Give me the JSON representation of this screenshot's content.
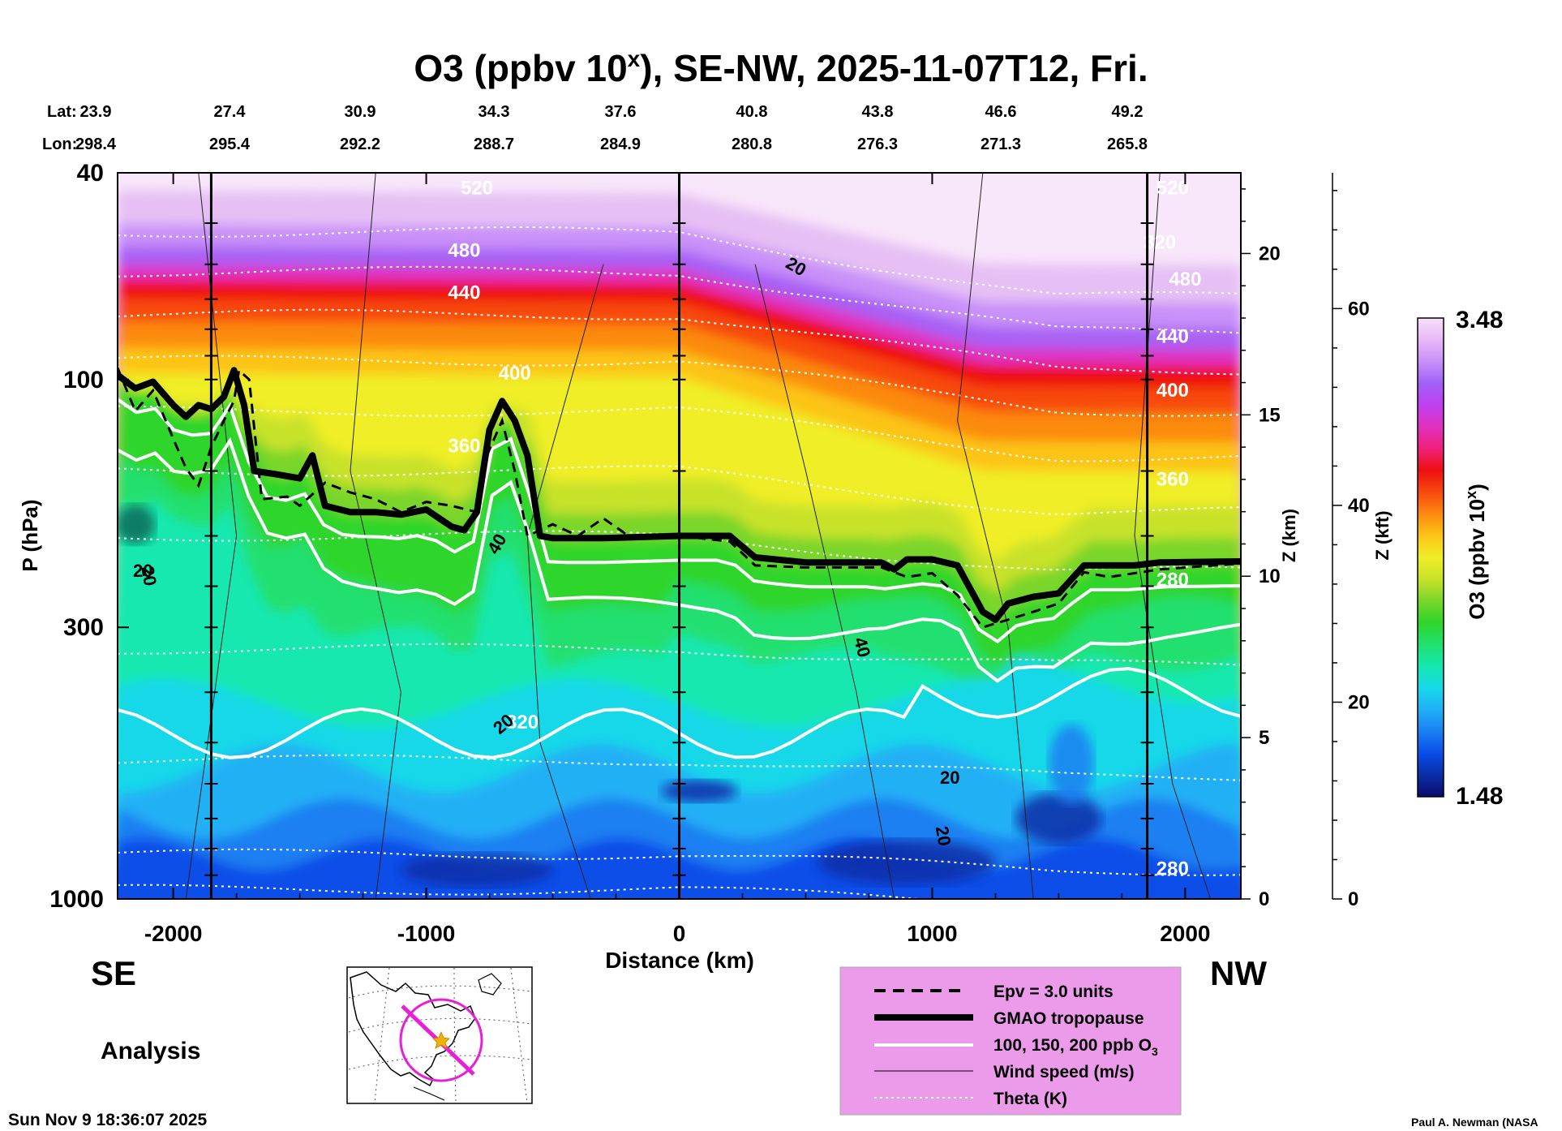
{
  "chart_data": {
    "type": "heatmap",
    "title_main": "O3 (ppbv 10",
    "title_sup": "x",
    "title_rest": "), SE-NW, 2025-11-07T12, Fri.",
    "lat_label": "Lat:",
    "lon_label": "Lon:",
    "lat": [
      "23.9",
      "27.4",
      "30.9",
      "34.3",
      "37.6",
      "40.8",
      "43.8",
      "46.6",
      "49.2"
    ],
    "lon": [
      "298.4",
      "295.4",
      "292.2",
      "288.7",
      "284.9",
      "280.8",
      "276.3",
      "271.3",
      "265.8"
    ],
    "xlabel": "Distance (km)",
    "xlim": [
      -2220,
      2220
    ],
    "x_ticks": [
      -2000,
      -1000,
      0,
      1000,
      2000
    ],
    "x_tick_labels": [
      "-2000",
      "-1000",
      "0",
      "1000",
      "2000"
    ],
    "ylabel": "P (hPa)",
    "y_ticks_hpa": [
      40,
      100,
      300,
      1000
    ],
    "y_tick_labels": [
      "40",
      "100",
      "300",
      "1000"
    ],
    "z_km_label": "Z (km)",
    "z_km_ticks": [
      0,
      5,
      10,
      15,
      20
    ],
    "z_km_tick_labels": [
      "0",
      "5",
      "10",
      "15",
      "20"
    ],
    "z_kft_label": "Z (kft)",
    "z_kft_ticks": [
      0,
      20,
      40,
      60
    ],
    "z_kft_tick_labels": [
      "0",
      "20",
      "40",
      "60"
    ],
    "colorbar": {
      "label_main": "O3 (ppbv 10",
      "label_sup": "x",
      "label_end": ")",
      "min_label": "1.48",
      "max_label": "3.48",
      "min": 1.48,
      "max": 3.48,
      "colors": [
        "#0a0a6a",
        "#0b2ea8",
        "#0a4de8",
        "#1a7ff2",
        "#20b0f5",
        "#16d8e8",
        "#15e8b0",
        "#20e070",
        "#2fd52a",
        "#7ad62a",
        "#c8e22a",
        "#f0ee28",
        "#fcc416",
        "#fc8a10",
        "#f84a10",
        "#ee1010",
        "#f0207a",
        "#e030c0",
        "#c040f0",
        "#a060f8",
        "#c890f8",
        "#e8b8f8",
        "#f8e0fa"
      ]
    },
    "theta_labels": [
      "520",
      "480",
      "440",
      "400",
      "360",
      "320",
      "280",
      "520",
      "480",
      "440",
      "400",
      "360",
      "320",
      "280"
    ],
    "wind_labels": [
      "20",
      "40",
      "20",
      "20",
      "40",
      "20",
      "20",
      "20"
    ],
    "tropopause_hpa": [
      [
        -2220,
        98
      ],
      [
        -2150,
        104
      ],
      [
        -2080,
        101
      ],
      [
        -2000,
        112
      ],
      [
        -1950,
        118
      ],
      [
        -1900,
        112
      ],
      [
        -1850,
        114
      ],
      [
        -1800,
        108
      ],
      [
        -1760,
        96
      ],
      [
        -1720,
        112
      ],
      [
        -1680,
        150
      ],
      [
        -1600,
        152
      ],
      [
        -1500,
        155
      ],
      [
        -1450,
        140
      ],
      [
        -1400,
        175
      ],
      [
        -1300,
        180
      ],
      [
        -1200,
        180
      ],
      [
        -1100,
        182
      ],
      [
        -1000,
        178
      ],
      [
        -900,
        192
      ],
      [
        -850,
        195
      ],
      [
        -800,
        180
      ],
      [
        -750,
        125
      ],
      [
        -700,
        110
      ],
      [
        -650,
        120
      ],
      [
        -600,
        140
      ],
      [
        -550,
        200
      ],
      [
        -500,
        202
      ],
      [
        -300,
        202
      ],
      [
        0,
        200
      ],
      [
        200,
        200
      ],
      [
        300,
        220
      ],
      [
        500,
        225
      ],
      [
        800,
        225
      ],
      [
        850,
        232
      ],
      [
        900,
        222
      ],
      [
        1000,
        222
      ],
      [
        1100,
        228
      ],
      [
        1200,
        280
      ],
      [
        1250,
        290
      ],
      [
        1300,
        270
      ],
      [
        1400,
        262
      ],
      [
        1500,
        258
      ],
      [
        1600,
        228
      ],
      [
        1800,
        228
      ],
      [
        1900,
        225
      ],
      [
        2220,
        224
      ]
    ],
    "epv_hpa": [
      [
        -2220,
        95
      ],
      [
        -2150,
        115
      ],
      [
        -2080,
        105
      ],
      [
        -2000,
        130
      ],
      [
        -1950,
        148
      ],
      [
        -1900,
        160
      ],
      [
        -1850,
        135
      ],
      [
        -1800,
        120
      ],
      [
        -1760,
        110
      ],
      [
        -1740,
        96
      ],
      [
        -1700,
        100
      ],
      [
        -1650,
        170
      ],
      [
        -1550,
        168
      ],
      [
        -1500,
        175
      ],
      [
        -1400,
        158
      ],
      [
        -1300,
        165
      ],
      [
        -1200,
        170
      ],
      [
        -1100,
        180
      ],
      [
        -1000,
        172
      ],
      [
        -900,
        175
      ],
      [
        -800,
        180
      ],
      [
        -760,
        140
      ],
      [
        -700,
        120
      ],
      [
        -650,
        150
      ],
      [
        -600,
        200
      ],
      [
        -500,
        190
      ],
      [
        -400,
        200
      ],
      [
        -300,
        185
      ],
      [
        -200,
        200
      ],
      [
        0,
        200
      ],
      [
        200,
        205
      ],
      [
        300,
        228
      ],
      [
        500,
        230
      ],
      [
        700,
        230
      ],
      [
        800,
        230
      ],
      [
        900,
        240
      ],
      [
        1000,
        236
      ],
      [
        1100,
        260
      ],
      [
        1200,
        300
      ],
      [
        1300,
        290
      ],
      [
        1400,
        280
      ],
      [
        1500,
        270
      ],
      [
        1600,
        235
      ],
      [
        1700,
        240
      ],
      [
        1900,
        232
      ],
      [
        2220,
        226
      ]
    ],
    "legend": {
      "items": [
        "Epv = 3.0 units",
        "GMAO tropopause",
        "100, 150, 200 ppb O",
        "Wind speed (m/s)",
        "Theta (K)"
      ],
      "o3_sub": "3"
    },
    "left_label": "SE",
    "right_label": "NW",
    "analysis_label": "Analysis",
    "timestamp": "Sun Nov  9 18:36:07 2025",
    "credit": "Paul A. Newman (NASA"
  }
}
